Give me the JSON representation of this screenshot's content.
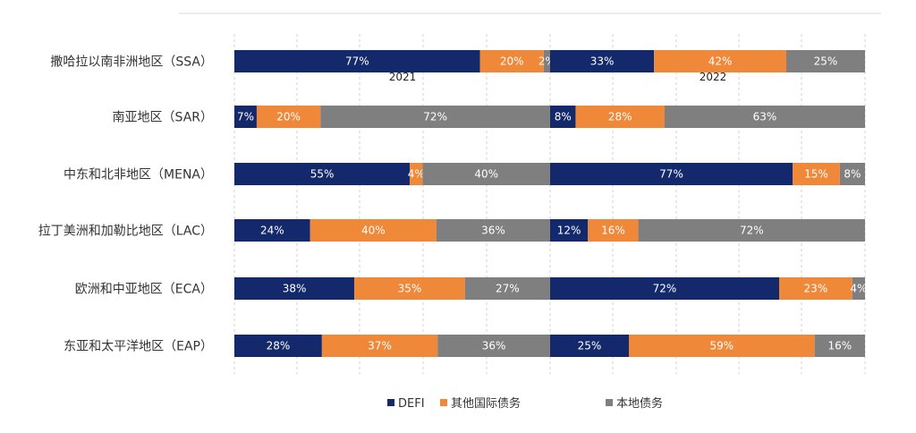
{
  "chart_data": {
    "type": "bar",
    "orientation": "horizontal",
    "stacked": "percent",
    "grid": true,
    "legend_position": "bottom",
    "groups": [
      "2021",
      "2022"
    ],
    "categories": [
      "撒哈拉以南非洲地区（SSA）",
      "南亚地区（SAR）",
      "中东和北非地区（MENA）",
      "拉丁美洲和加勒比地区（LAC）",
      "欧洲和中亚地区（ECA）",
      "东亚和太平洋地区（EAP）"
    ],
    "series": [
      {
        "name": "DEFI",
        "color": "#13296b",
        "text_color": "#ffffff",
        "values": {
          "2021": [
            77,
            7,
            55,
            24,
            38,
            28
          ],
          "2022": [
            33,
            8,
            77,
            12,
            72,
            25
          ]
        }
      },
      {
        "name": "其他国际债务",
        "color": "#f0883a",
        "text_color": "#ffffff",
        "values": {
          "2021": [
            20,
            20,
            4,
            40,
            35,
            37
          ],
          "2022": [
            42,
            28,
            15,
            16,
            23,
            59
          ]
        }
      },
      {
        "name": "本地债务",
        "color": "#7f7f7f",
        "text_color": "#ffffff",
        "values": {
          "2021": [
            2,
            72,
            40,
            36,
            27,
            36
          ],
          "2022": [
            25,
            63,
            8,
            72,
            4,
            16
          ]
        }
      }
    ],
    "data_labels": {
      "2021": [
        [
          "77%",
          "20%",
          "2%"
        ],
        [
          "7%",
          "20%",
          "72%"
        ],
        [
          "55%",
          "4%",
          "40%"
        ],
        [
          "24%",
          "40%",
          "36%"
        ],
        [
          "38%",
          "35%",
          "27%"
        ],
        [
          "28%",
          "37%",
          "36%"
        ]
      ],
      "2022": [
        [
          "33%",
          "42%",
          "25%"
        ],
        [
          "8%",
          "28%",
          "63%"
        ],
        [
          "77%",
          "15%",
          "8%"
        ],
        [
          "12%",
          "16%",
          "72%"
        ],
        [
          "72%",
          "23%",
          "4%"
        ],
        [
          "25%",
          "59%",
          "16%"
        ]
      ]
    }
  }
}
